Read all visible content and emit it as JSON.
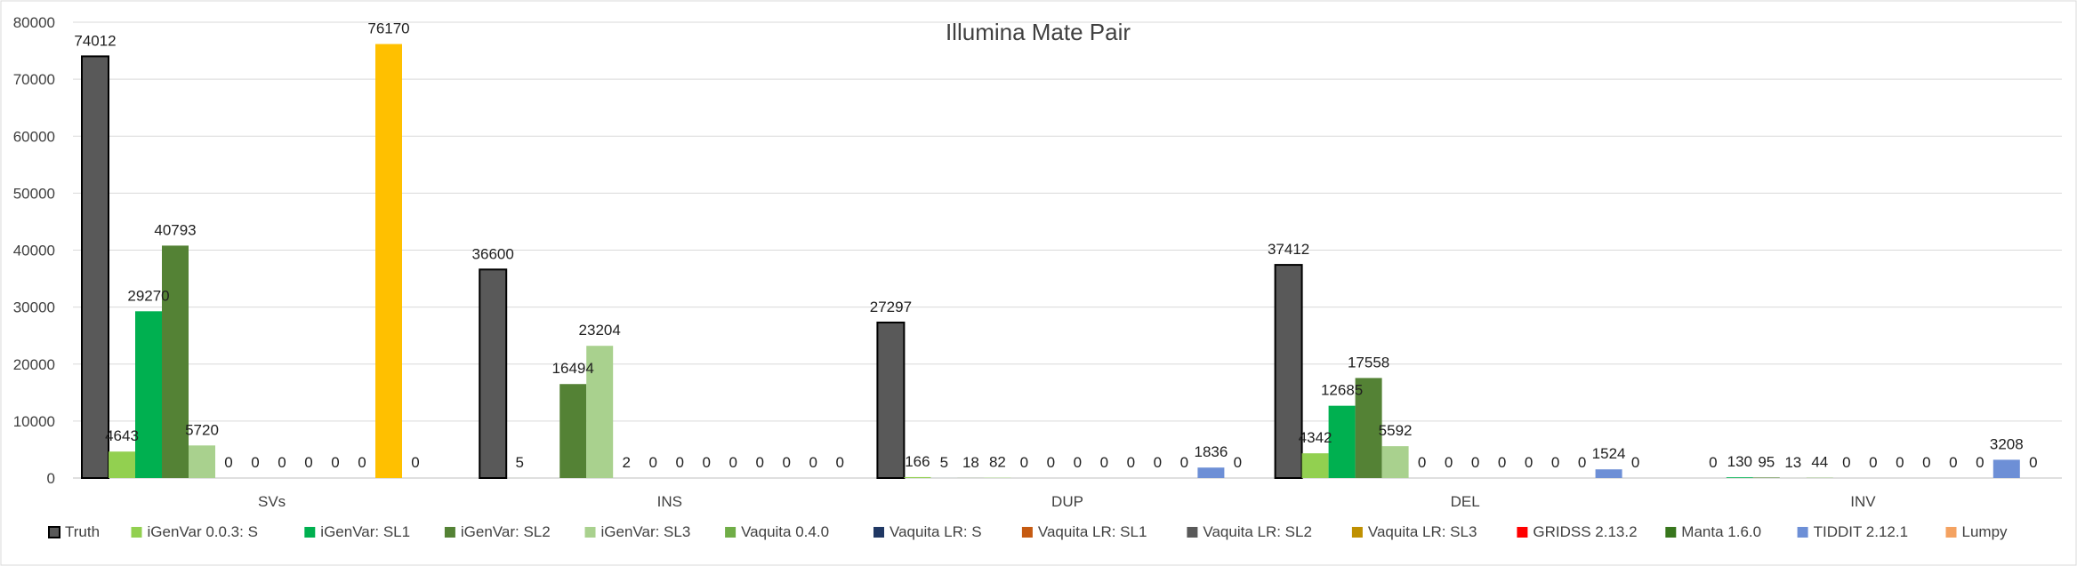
{
  "chart_data": {
    "type": "bar",
    "title": "Illumina Mate Pair",
    "xlabel": "",
    "ylabel": "",
    "ylim": [
      0,
      80000
    ],
    "yticks": [
      0,
      10000,
      20000,
      30000,
      40000,
      50000,
      60000,
      70000,
      80000
    ],
    "grid": true,
    "legend_position": "bottom",
    "categories": [
      "SVs",
      "INS",
      "DUP",
      "DEL",
      "INV"
    ],
    "series": [
      {
        "name": "Truth",
        "color": "#595959",
        "values": [
          74012,
          36600,
          27297,
          37412,
          null
        ]
      },
      {
        "name": "iGenVar 0.0.3: S",
        "color": "#92d050",
        "values": [
          4643,
          5,
          166,
          4342,
          0
        ]
      },
      {
        "name": "iGenVar: SL1",
        "color": "#00b050",
        "values": [
          29270,
          null,
          5,
          12685,
          130
        ]
      },
      {
        "name": "iGenVar: SL2",
        "color": "#548235",
        "values": [
          40793,
          16494,
          18,
          17558,
          95
        ]
      },
      {
        "name": "iGenVar: SL3",
        "color": "#a9d18e",
        "values": [
          5720,
          23204,
          82,
          5592,
          13
        ]
      },
      {
        "name": "Vaquita 0.4.0",
        "color": "#70ad47",
        "values": [
          0,
          2,
          0,
          0,
          44
        ]
      },
      {
        "name": "Vaquita LR: S",
        "color": "#203864",
        "values": [
          0,
          0,
          0,
          0,
          0
        ]
      },
      {
        "name": "Vaquita LR: SL1",
        "color": "#c55a11",
        "values": [
          0,
          0,
          0,
          0,
          0
        ]
      },
      {
        "name": "Vaquita LR: SL2",
        "color": "#595959",
        "values": [
          0,
          0,
          0,
          0,
          0
        ]
      },
      {
        "name": "Vaquita LR: SL3",
        "color": "#bf9000",
        "values": [
          0,
          0,
          0,
          0,
          0
        ]
      },
      {
        "name": "GRIDSS 2.13.2",
        "color": "#ff0000",
        "values": [
          0,
          0,
          0,
          0,
          0
        ]
      },
      {
        "name": "Manta 1.6.0",
        "color": "#38761d",
        "values": [
          76170,
          0,
          0,
          0,
          0
        ]
      },
      {
        "name": "TIDDIT 2.12.1",
        "color": "#6d8fd6",
        "values": [
          0,
          0,
          1836,
          1524,
          3208
        ]
      },
      {
        "name": "Lumpy",
        "color": "#f4a261",
        "values": [
          null,
          0,
          0,
          0,
          0
        ]
      }
    ],
    "bar_colors_override": {
      "Manta 1.6.0@SVs": "#ffc000"
    },
    "truth_outline": "#000000"
  }
}
